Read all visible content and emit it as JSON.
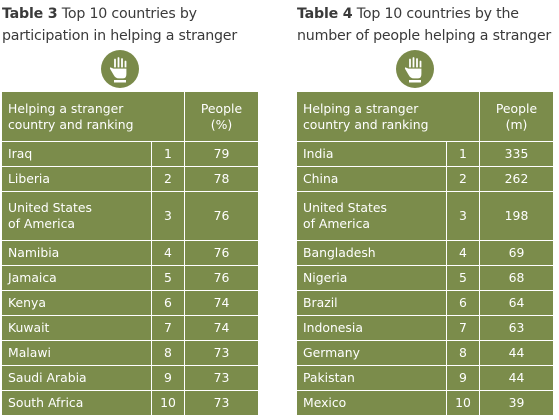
{
  "left": {
    "title_label": "Table 3",
    "title_rest": "Top 10 countries by",
    "title_line2": "participation in helping a stranger",
    "icon": "hand-icon",
    "header_col1_line1": "Helping a stranger",
    "header_col1_line2": "country and ranking",
    "header_col2_line1": "People",
    "header_col2_line2": "(%)",
    "rows": [
      {
        "country": "Iraq",
        "country2": "",
        "rank": "1",
        "value": "79"
      },
      {
        "country": "Liberia",
        "country2": "",
        "rank": "2",
        "value": "78"
      },
      {
        "country": "United States",
        "country2": "of America",
        "rank": "3",
        "value": "76"
      },
      {
        "country": "Namibia",
        "country2": "",
        "rank": "4",
        "value": "76"
      },
      {
        "country": "Jamaica",
        "country2": "",
        "rank": "5",
        "value": "76"
      },
      {
        "country": "Kenya",
        "country2": "",
        "rank": "6",
        "value": "74"
      },
      {
        "country": "Kuwait",
        "country2": "",
        "rank": "7",
        "value": "74"
      },
      {
        "country": "Malawi",
        "country2": "",
        "rank": "8",
        "value": "73"
      },
      {
        "country": "Saudi Arabia",
        "country2": "",
        "rank": "9",
        "value": "73"
      },
      {
        "country": "South Africa",
        "country2": "",
        "rank": "10",
        "value": "73"
      }
    ]
  },
  "right": {
    "title_label": "Table 4",
    "title_rest": "Top 10 countries by the",
    "title_line2": "number of people helping a stranger",
    "icon": "hand-icon",
    "header_col1_line1": "Helping a stranger",
    "header_col1_line2": "country and ranking",
    "header_col2_line1": "People",
    "header_col2_line2": "(m)",
    "rows": [
      {
        "country": "India",
        "country2": "",
        "rank": "1",
        "value": "335"
      },
      {
        "country": "China",
        "country2": "",
        "rank": "2",
        "value": "262"
      },
      {
        "country": "United States",
        "country2": "of America",
        "rank": "3",
        "value": "198"
      },
      {
        "country": "Bangladesh",
        "country2": "",
        "rank": "4",
        "value": "69"
      },
      {
        "country": "Nigeria",
        "country2": "",
        "rank": "5",
        "value": "68"
      },
      {
        "country": "Brazil",
        "country2": "",
        "rank": "6",
        "value": "64"
      },
      {
        "country": "Indonesia",
        "country2": "",
        "rank": "7",
        "value": "63"
      },
      {
        "country": "Germany",
        "country2": "",
        "rank": "8",
        "value": "44"
      },
      {
        "country": "Pakistan",
        "country2": "",
        "rank": "9",
        "value": "44"
      },
      {
        "country": "Mexico",
        "country2": "",
        "rank": "10",
        "value": "39"
      }
    ]
  },
  "colors": {
    "table_fill": "#7b8c4b",
    "icon_fill": "#7a8a4a",
    "title_text": "#3a3a3a",
    "cell_text": "#ffffff"
  }
}
